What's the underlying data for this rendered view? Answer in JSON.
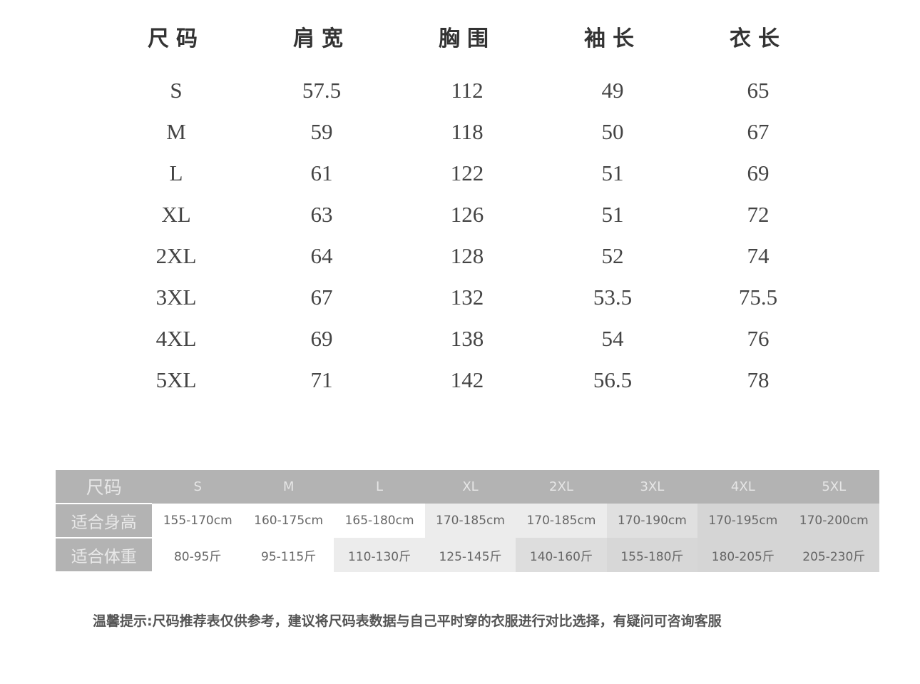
{
  "measurements": {
    "headers": [
      "尺码",
      "肩宽",
      "胸围",
      "袖长",
      "衣长"
    ],
    "rows": [
      [
        "S",
        "57.5",
        "112",
        "49",
        "65"
      ],
      [
        "M",
        "59",
        "118",
        "50",
        "67"
      ],
      [
        "L",
        "61",
        "122",
        "51",
        "69"
      ],
      [
        "XL",
        "63",
        "126",
        "51",
        "72"
      ],
      [
        "2XL",
        "64",
        "128",
        "52",
        "74"
      ],
      [
        "3XL",
        "67",
        "132",
        "53.5",
        "75.5"
      ],
      [
        "4XL",
        "69",
        "138",
        "54",
        "76"
      ],
      [
        "5XL",
        "71",
        "142",
        "56.5",
        "78"
      ]
    ]
  },
  "recommend": {
    "size_label": "尺码",
    "sizes": [
      "S",
      "M",
      "L",
      "XL",
      "2XL",
      "3XL",
      "4XL",
      "5XL"
    ],
    "height_label": "适合身高",
    "heights": [
      "155-170cm",
      "160-175cm",
      "165-180cm",
      "170-185cm",
      "170-185cm",
      "170-190cm",
      "170-195cm",
      "170-200cm"
    ],
    "weight_label": "适合体重",
    "weights": [
      "80-95斤",
      "95-115斤",
      "110-130斤",
      "125-145斤",
      "140-160斤",
      "155-180斤",
      "180-205斤",
      "205-230斤"
    ],
    "height_shades": [
      "#ffffff",
      "#ffffff",
      "#ffffff",
      "#ececec",
      "#ececec",
      "#e0e0e0",
      "#d5d5d5",
      "#d5d5d5"
    ],
    "weight_shades": [
      "#ffffff",
      "#ffffff",
      "#ececec",
      "#ececec",
      "#dddddd",
      "#d7d7d7",
      "#d5d5d5",
      "#d5d5d5"
    ]
  },
  "note": "温馨提示:尺码推荐表仅供参考，建议将尺码表数据与自己平时穿的衣服进行对比选择，有疑问可咨询客服"
}
